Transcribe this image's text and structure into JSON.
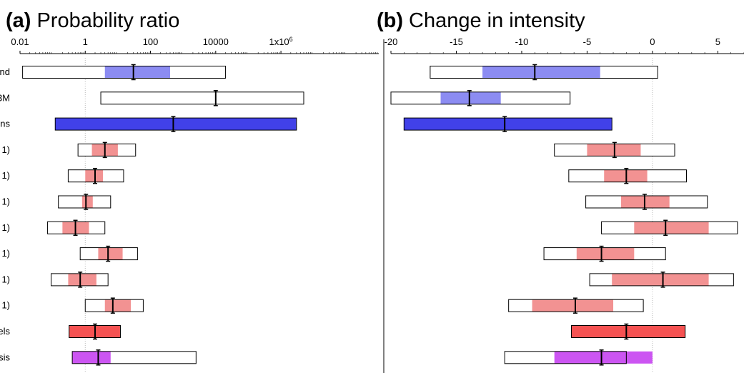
{
  "colors": {
    "obs_light": "#8C8CF2",
    "obs_dark": "#4141E9",
    "model_light": "#F29292",
    "synth_models": "#F55252",
    "synth_all": "#CC55F2",
    "box_border": "#000000"
  },
  "chart_data": [
    {
      "type": "interval",
      "panel_letter": "(a)",
      "title": "Probability ratio",
      "scale": "log",
      "xlim": [
        0.01,
        1000000000
      ],
      "ticks": [
        {
          "value": 0.01,
          "label": "0.01"
        },
        {
          "value": 1,
          "label": "1"
        },
        {
          "value": 100,
          "label": "100"
        },
        {
          "value": 10000,
          "label": "10000"
        },
        {
          "value": 1000000,
          "label": "1x10",
          "sup": "6"
        }
      ],
      "reference_line": 1,
      "row_labels": [
        "nd",
        "3M",
        "ns",
        "1)",
        "1)",
        "1)",
        "1)",
        "1)",
        "1)",
        "1)",
        "els",
        "sis"
      ],
      "rows": [
        {
          "outer": [
            0.012,
            20000
          ],
          "inner": [
            4,
            400
          ],
          "center": 30,
          "fill": "obs_light",
          "outline_fill": "#ffffff"
        },
        {
          "outer": [
            3,
            5000000
          ],
          "inner": null,
          "center": 10000,
          "fill": null,
          "outline_fill": "#ffffff"
        },
        {
          "outer": [
            0.12,
            3000000
          ],
          "inner": null,
          "center": 500,
          "fill": "obs_dark",
          "outline_fill": "obs_dark"
        },
        {
          "outer": [
            0.6,
            35
          ],
          "inner": [
            1.6,
            10
          ],
          "center": 4,
          "fill": "model_light",
          "outline_fill": "#ffffff"
        },
        {
          "outer": [
            0.3,
            15
          ],
          "inner": [
            1.0,
            3.5
          ],
          "center": 2,
          "fill": "model_light",
          "outline_fill": "#ffffff"
        },
        {
          "outer": [
            0.15,
            6
          ],
          "inner": [
            0.8,
            1.7
          ],
          "center": 1.05,
          "fill": "model_light",
          "outline_fill": "#ffffff"
        },
        {
          "outer": [
            0.07,
            4
          ],
          "inner": [
            0.2,
            1.3
          ],
          "center": 0.5,
          "fill": "model_light",
          "outline_fill": "#ffffff"
        },
        {
          "outer": [
            0.7,
            40
          ],
          "inner": [
            2.5,
            14
          ],
          "center": 5,
          "fill": "model_light",
          "outline_fill": "#ffffff"
        },
        {
          "outer": [
            0.09,
            5
          ],
          "inner": [
            0.3,
            2.2
          ],
          "center": 0.7,
          "fill": "model_light",
          "outline_fill": "#ffffff"
        },
        {
          "outer": [
            1.0,
            60
          ],
          "inner": [
            4,
            25
          ],
          "center": 7,
          "fill": "model_light",
          "outline_fill": "#ffffff"
        },
        {
          "outer": [
            0.32,
            12
          ],
          "inner": null,
          "center": 2,
          "fill": "synth_models",
          "outline_fill": "synth_models"
        },
        {
          "outer": [
            0.4,
            2500
          ],
          "inner": [
            0.4,
            6
          ],
          "center": 2.5,
          "fill": "synth_all",
          "outline_fill": "#ffffff"
        }
      ]
    },
    {
      "type": "interval",
      "panel_letter": "(b)",
      "title": "Change in intensity",
      "scale": "linear",
      "xlim": [
        -20,
        7
      ],
      "ticks": [
        {
          "value": -20,
          "label": "-20"
        },
        {
          "value": -15,
          "label": "-15"
        },
        {
          "value": -10,
          "label": "-10"
        },
        {
          "value": -5,
          "label": "-5"
        },
        {
          "value": 0,
          "label": "0"
        },
        {
          "value": 5,
          "label": "5"
        }
      ],
      "reference_line": 0,
      "rows": [
        {
          "outer": [
            -17.0,
            0.4
          ],
          "inner": [
            -13.0,
            -4.0
          ],
          "center": -9.0,
          "fill": "obs_light",
          "outline_fill": "#ffffff"
        },
        {
          "outer": [
            -20.0,
            -6.3
          ],
          "inner": [
            -16.2,
            -11.6
          ],
          "center": -14.0,
          "fill": "obs_light",
          "outline_fill": "#ffffff"
        },
        {
          "outer": [
            -19.0,
            -3.1
          ],
          "inner": null,
          "center": -11.3,
          "fill": "obs_dark",
          "outline_fill": "obs_dark"
        },
        {
          "outer": [
            -7.5,
            1.7
          ],
          "inner": [
            -5.0,
            -0.9
          ],
          "center": -2.9,
          "fill": "model_light",
          "outline_fill": "#ffffff"
        },
        {
          "outer": [
            -6.4,
            2.6
          ],
          "inner": [
            -3.7,
            -0.4
          ],
          "center": -2.0,
          "fill": "model_light",
          "outline_fill": "#ffffff"
        },
        {
          "outer": [
            -5.1,
            4.2
          ],
          "inner": [
            -2.4,
            1.3
          ],
          "center": -0.6,
          "fill": "model_light",
          "outline_fill": "#ffffff"
        },
        {
          "outer": [
            -3.9,
            6.5
          ],
          "inner": [
            -1.4,
            4.3
          ],
          "center": 1.0,
          "fill": "model_light",
          "outline_fill": "#ffffff"
        },
        {
          "outer": [
            -8.3,
            1.0
          ],
          "inner": [
            -5.8,
            -1.4
          ],
          "center": -3.9,
          "fill": "model_light",
          "outline_fill": "#ffffff"
        },
        {
          "outer": [
            -4.8,
            6.2
          ],
          "inner": [
            -3.1,
            4.3
          ],
          "center": 0.8,
          "fill": "model_light",
          "outline_fill": "#ffffff"
        },
        {
          "outer": [
            -11.0,
            -0.7
          ],
          "inner": [
            -9.2,
            -3.0
          ],
          "center": -5.9,
          "fill": "model_light",
          "outline_fill": "#ffffff"
        },
        {
          "outer": [
            -6.2,
            2.5
          ],
          "inner": null,
          "center": -2.0,
          "fill": "synth_models",
          "outline_fill": "synth_models"
        },
        {
          "outer": [
            -11.3,
            -2.0
          ],
          "inner": [
            -7.5,
            0.0
          ],
          "center": -3.9,
          "fill": "synth_all",
          "outline_fill": "#ffffff"
        }
      ]
    }
  ]
}
